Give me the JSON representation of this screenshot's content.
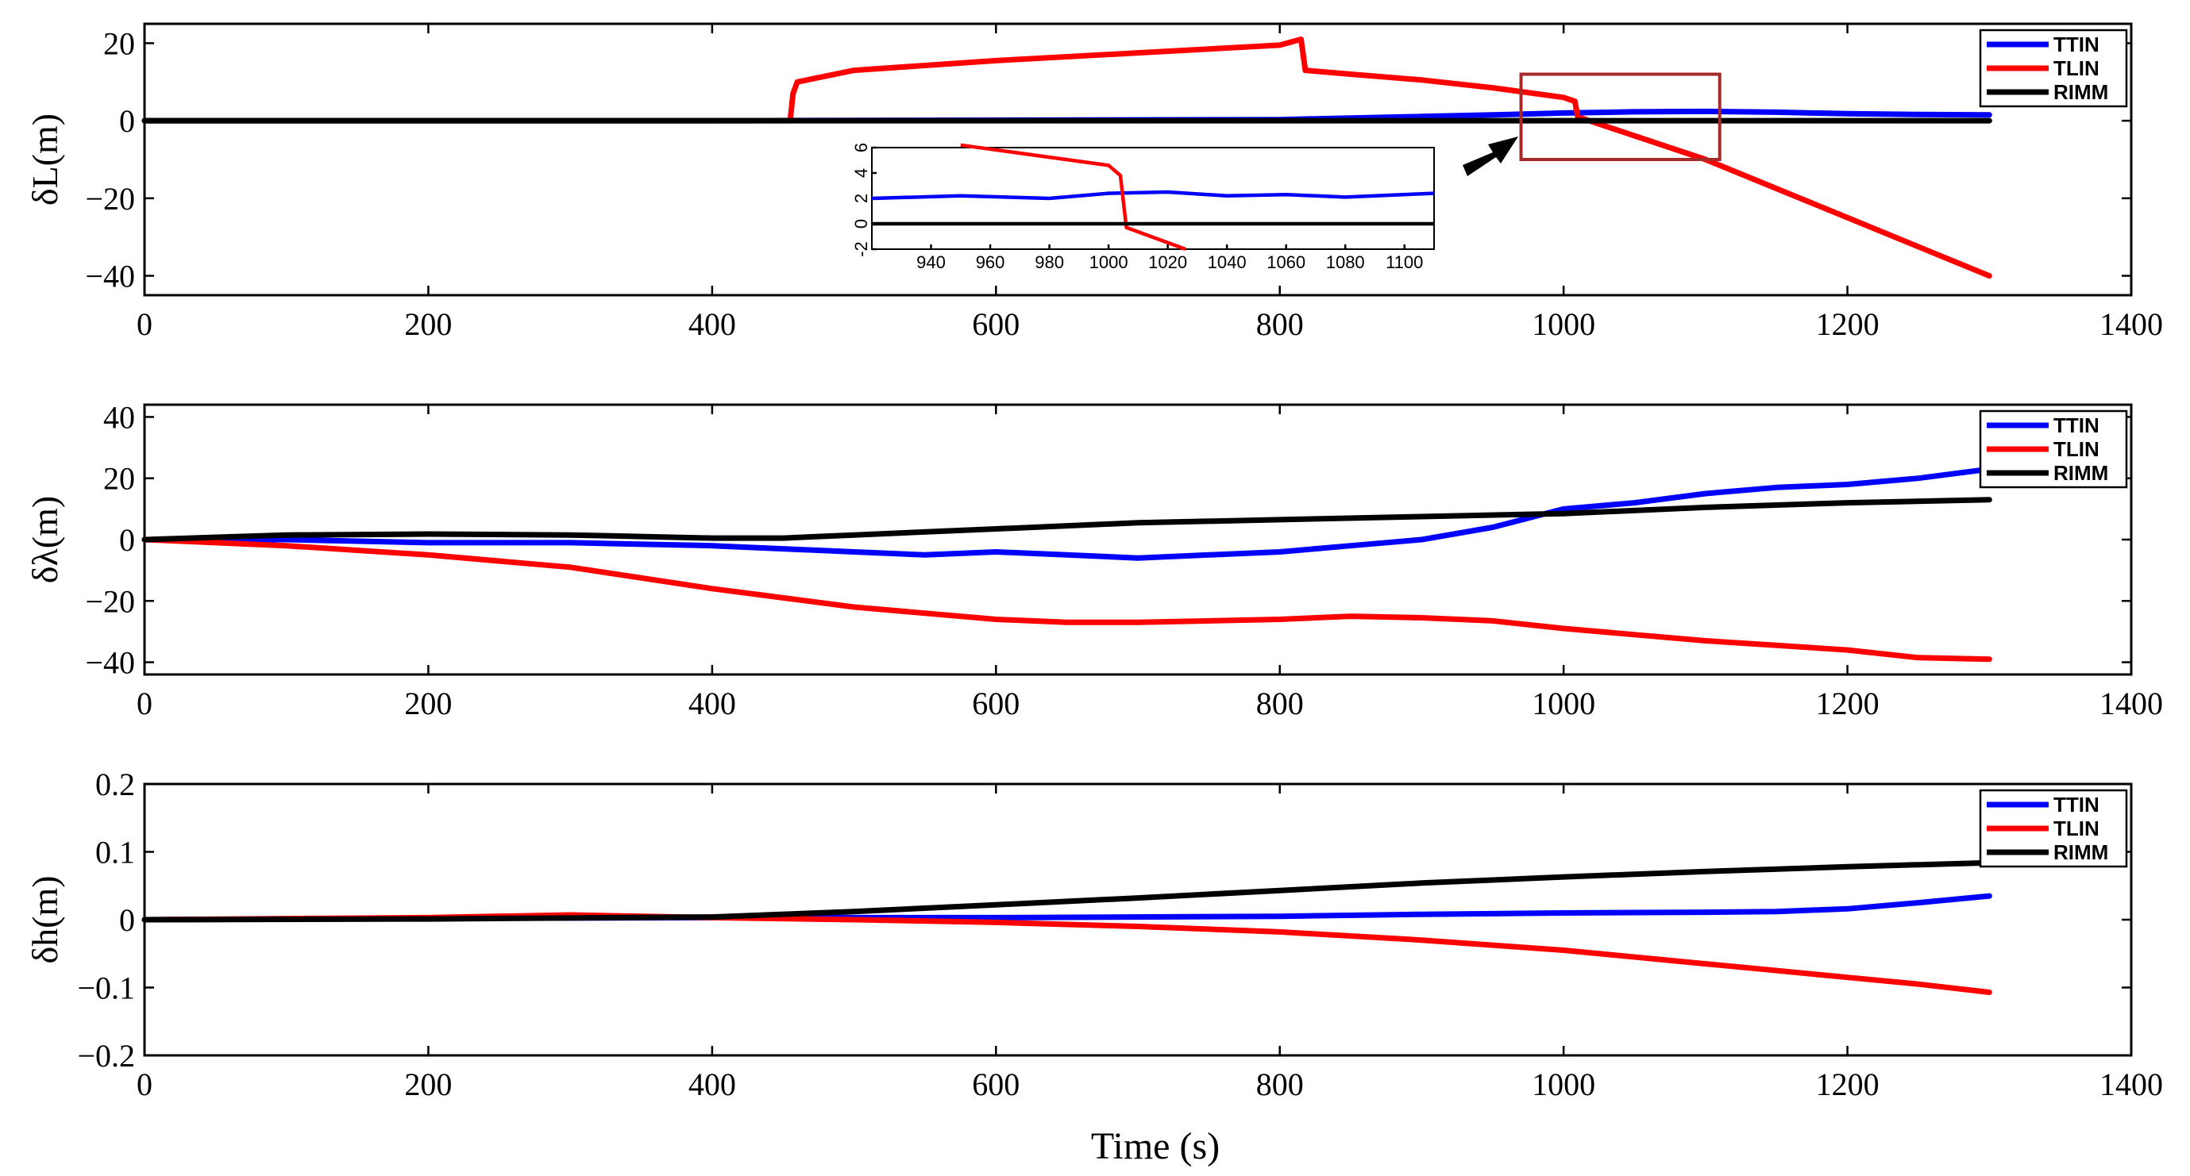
{
  "colors": {
    "TTIN": "#0000ff",
    "TLIN": "#ff0000",
    "RIMM": "#000000",
    "zoom_box": "#a52a2a"
  },
  "chart_data": [
    {
      "type": "line",
      "ylabel": "δL(m)",
      "xlabel": "",
      "xlim": [
        0,
        1400
      ],
      "ylim": [
        -45,
        25
      ],
      "xticks": [
        "0",
        "200",
        "400",
        "600",
        "800",
        "1000",
        "1200",
        "1400"
      ],
      "yticks": [
        {
          "value": 20,
          "label": "20"
        },
        {
          "value": 0,
          "label": "0"
        },
        {
          "value": -20,
          "label": "−20"
        },
        {
          "value": -40,
          "label": "−40"
        }
      ],
      "legend": [
        "TTIN",
        "TLIN",
        "RIMM"
      ],
      "legend_position": "top-right",
      "series": [
        {
          "name": "TTIN",
          "x": [
            0,
            400,
            800,
            850,
            900,
            950,
            1000,
            1050,
            1100,
            1150,
            1200,
            1250,
            1300
          ],
          "y": [
            0,
            0,
            0.3,
            0.7,
            1.1,
            1.5,
            2.0,
            2.3,
            2.4,
            2.2,
            1.8,
            1.6,
            1.5
          ]
        },
        {
          "name": "TLIN",
          "x": [
            0,
            455,
            457,
            460,
            500,
            600,
            700,
            800,
            815,
            818,
            850,
            900,
            950,
            1000,
            1008,
            1010,
            1100,
            1200,
            1300
          ],
          "y": [
            0,
            0,
            7,
            10,
            13,
            15.5,
            17.5,
            19.5,
            21,
            13,
            12,
            10.5,
            8.5,
            6,
            5,
            1,
            -10,
            -25,
            -40
          ]
        },
        {
          "name": "RIMM",
          "x": [
            0,
            1300
          ],
          "y": [
            0,
            0
          ]
        }
      ],
      "zoom_region": {
        "x": [
          970,
          1110
        ],
        "y": [
          -10,
          12
        ]
      },
      "inset": {
        "xlim": [
          920,
          1110
        ],
        "ylim": [
          -2,
          6
        ],
        "xticks": [
          "940",
          "960",
          "980",
          "1000",
          "1020",
          "1040",
          "1060",
          "1080",
          "1100"
        ],
        "yticks": [
          "-2",
          "0",
          "2",
          "4",
          "6"
        ],
        "series": [
          {
            "name": "TTIN",
            "x": [
              920,
              950,
              980,
              1000,
              1020,
              1040,
              1060,
              1080,
              1110
            ],
            "y": [
              2.0,
              2.2,
              2.0,
              2.4,
              2.5,
              2.2,
              2.3,
              2.1,
              2.4
            ]
          },
          {
            "name": "TLIN",
            "x": [
              950,
              1000,
              1004,
              1006,
              1026
            ],
            "y": [
              6.2,
              4.6,
              3.8,
              -0.3,
              -2.0
            ]
          },
          {
            "name": "RIMM",
            "x": [
              920,
              1110
            ],
            "y": [
              0,
              0
            ]
          }
        ]
      }
    },
    {
      "type": "line",
      "ylabel": "δλ(m)",
      "xlabel": "",
      "xlim": [
        0,
        1400
      ],
      "ylim": [
        -44,
        44
      ],
      "xticks": [
        "0",
        "200",
        "400",
        "600",
        "800",
        "1000",
        "1200",
        "1400"
      ],
      "yticks": [
        {
          "value": 40,
          "label": "40"
        },
        {
          "value": 20,
          "label": "20"
        },
        {
          "value": 0,
          "label": "0"
        },
        {
          "value": -20,
          "label": "−20"
        },
        {
          "value": -40,
          "label": "−40"
        }
      ],
      "legend": [
        "TTIN",
        "TLIN",
        "RIMM"
      ],
      "legend_position": "top-right",
      "series": [
        {
          "name": "TTIN",
          "x": [
            0,
            100,
            200,
            300,
            400,
            450,
            500,
            550,
            600,
            650,
            700,
            750,
            800,
            850,
            900,
            950,
            1000,
            1050,
            1100,
            1150,
            1200,
            1250,
            1300
          ],
          "y": [
            0,
            0,
            -1,
            -1,
            -2,
            -3,
            -4,
            -5,
            -4,
            -5,
            -6,
            -5,
            -4,
            -2,
            0,
            4,
            10,
            12,
            15,
            17,
            18,
            20,
            23
          ]
        },
        {
          "name": "TLIN",
          "x": [
            0,
            100,
            200,
            300,
            400,
            450,
            500,
            600,
            650,
            700,
            800,
            850,
            900,
            950,
            1000,
            1050,
            1100,
            1150,
            1200,
            1250,
            1300
          ],
          "y": [
            0,
            -2,
            -5,
            -9,
            -16,
            -19,
            -22,
            -26,
            -27,
            -27,
            -26,
            -25,
            -25.5,
            -26.5,
            -29,
            -31,
            -33,
            -34.5,
            -36,
            -38.5,
            -39
          ]
        },
        {
          "name": "RIMM",
          "x": [
            0,
            100,
            200,
            300,
            400,
            450,
            500,
            600,
            700,
            800,
            900,
            1000,
            1100,
            1200,
            1300
          ],
          "y": [
            0,
            1.5,
            1.8,
            1.5,
            0.5,
            0.5,
            1.5,
            3.5,
            5.5,
            6.5,
            7.5,
            8.5,
            10.5,
            12,
            13
          ]
        }
      ]
    },
    {
      "type": "line",
      "ylabel": "δh(m)",
      "xlabel": "Time (s)",
      "xlim": [
        0,
        1400
      ],
      "ylim": [
        -0.2,
        0.2
      ],
      "xticks": [
        "0",
        "200",
        "400",
        "600",
        "800",
        "1000",
        "1200",
        "1400"
      ],
      "yticks": [
        {
          "value": 0.2,
          "label": "0.2"
        },
        {
          "value": 0.1,
          "label": "0.1"
        },
        {
          "value": 0,
          "label": "0"
        },
        {
          "value": -0.1,
          "label": "−0.1"
        },
        {
          "value": -0.2,
          "label": "−0.2"
        }
      ],
      "legend": [
        "TTIN",
        "TLIN",
        "RIMM"
      ],
      "legend_position": "top-right",
      "series": [
        {
          "name": "TTIN",
          "x": [
            0,
            200,
            400,
            600,
            800,
            900,
            1000,
            1100,
            1150,
            1200,
            1250,
            1300
          ],
          "y": [
            0,
            0.002,
            0.003,
            0.003,
            0.005,
            0.008,
            0.01,
            0.011,
            0.012,
            0.016,
            0.025,
            0.035
          ]
        },
        {
          "name": "TLIN",
          "x": [
            0,
            200,
            300,
            400,
            500,
            600,
            700,
            800,
            900,
            1000,
            1100,
            1200,
            1250,
            1300
          ],
          "y": [
            0,
            0.003,
            0.007,
            0.003,
            0,
            -0.004,
            -0.01,
            -0.018,
            -0.03,
            -0.045,
            -0.065,
            -0.085,
            -0.095,
            -0.107
          ]
        },
        {
          "name": "RIMM",
          "x": [
            0,
            200,
            400,
            500,
            600,
            700,
            800,
            900,
            1000,
            1100,
            1200,
            1300
          ],
          "y": [
            0,
            0.001,
            0.004,
            0.012,
            0.022,
            0.032,
            0.043,
            0.054,
            0.063,
            0.071,
            0.078,
            0.084
          ]
        }
      ]
    }
  ]
}
